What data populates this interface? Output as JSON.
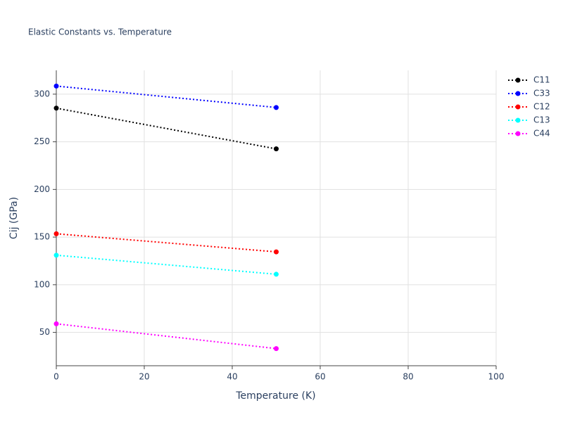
{
  "chart_data": {
    "type": "line",
    "title": "Elastic Constants vs. Temperature",
    "x_label": "Temperature (K)",
    "y_label": "Cij (GPa)",
    "x": [
      0,
      50
    ],
    "series": [
      {
        "name": "C11",
        "color": "#000000",
        "values": [
          285.3,
          242.6
        ]
      },
      {
        "name": "C33",
        "color": "#0000ff",
        "values": [
          308.5,
          286.0
        ]
      },
      {
        "name": "C12",
        "color": "#ff0000",
        "values": [
          153.5,
          134.5
        ]
      },
      {
        "name": "C13",
        "color": "#00ffff",
        "values": [
          131.0,
          111.0
        ]
      },
      {
        "name": "C44",
        "color": "#ff00ff",
        "values": [
          59.0,
          33.0
        ]
      }
    ],
    "xlim": [
      0,
      100
    ],
    "xticks": [
      0,
      20,
      40,
      60,
      80,
      100
    ],
    "ylim": [
      15,
      325
    ],
    "yticks": [
      50,
      100,
      150,
      200,
      250,
      300
    ],
    "grid": true,
    "legend": "top-right"
  }
}
